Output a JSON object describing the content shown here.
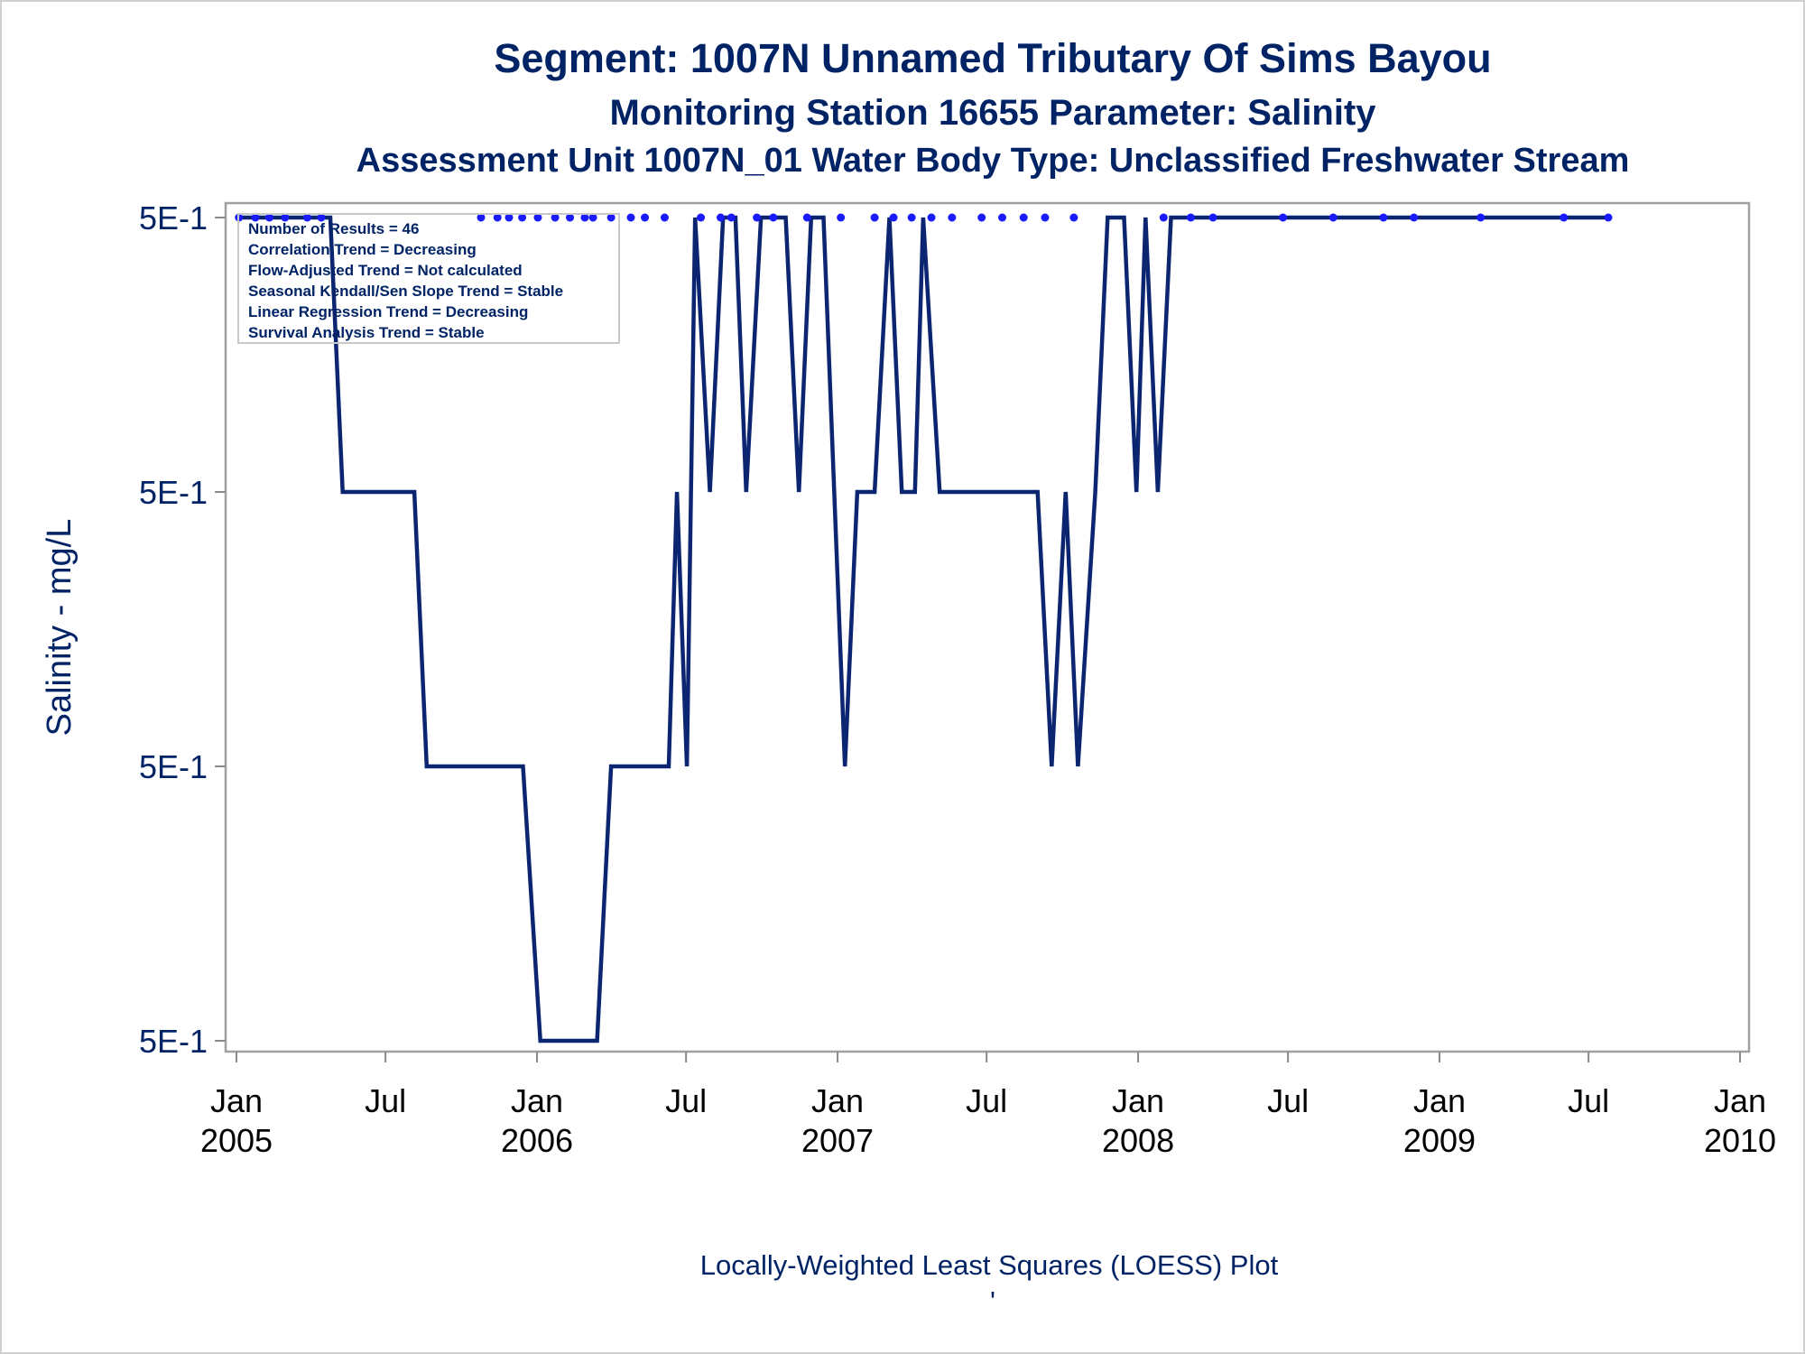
{
  "chart_data": {
    "type": "line",
    "title": "Segment: 1007N  Unnamed Tributary Of Sims Bayou",
    "subtitle": "Monitoring Station 16655 Parameter: Salinity",
    "subtitle2": "Assessment Unit 1007N_01    Water Body Type: Unclassified Freshwater Stream",
    "ylabel": "Salinity - mg/L",
    "footnote": "Locally-Weighted Least Squares (LOESS) Plot",
    "footnote_mark": "'",
    "y_ticks": [
      "5E-1",
      "5E-1",
      "5E-1",
      "5E-1"
    ],
    "y_tick_levels": [
      0,
      1,
      2,
      3
    ],
    "x_ticks": [
      {
        "date": "2005-01-01",
        "line1": "Jan",
        "line2": "2005"
      },
      {
        "date": "2005-07-01",
        "line1": "Jul",
        "line2": ""
      },
      {
        "date": "2006-01-01",
        "line1": "Jan",
        "line2": "2006"
      },
      {
        "date": "2006-07-01",
        "line1": "Jul",
        "line2": ""
      },
      {
        "date": "2007-01-01",
        "line1": "Jan",
        "line2": "2007"
      },
      {
        "date": "2007-07-01",
        "line1": "Jul",
        "line2": ""
      },
      {
        "date": "2008-01-01",
        "line1": "Jan",
        "line2": "2008"
      },
      {
        "date": "2008-07-01",
        "line1": "Jul",
        "line2": ""
      },
      {
        "date": "2009-01-01",
        "line1": "Jan",
        "line2": "2009"
      },
      {
        "date": "2009-07-01",
        "line1": "Jul",
        "line2": ""
      },
      {
        "date": "2010-01-01",
        "line1": "Jan",
        "line2": "2010"
      }
    ],
    "x_range": [
      "2005-01-01",
      "2010-01-01"
    ],
    "y_range": [
      0,
      3
    ],
    "grid": false,
    "legend_position": "top-left",
    "legend_lines": [
      "Number of Results = 46",
      "Correlation Trend = Decreasing",
      "Flow-Adjusted Trend = Not calculated",
      "Seasonal Kendall/Sen Slope Trend = Stable",
      "Linear Regression Trend = Decreasing",
      "Survival Analysis Trend = Stable"
    ],
    "series": [
      {
        "type": "scatter",
        "values": [
          {
            "x": "2005-01-04",
            "y": 3
          },
          {
            "x": "2005-01-24",
            "y": 3
          },
          {
            "x": "2005-02-10",
            "y": 3
          },
          {
            "x": "2005-03-01",
            "y": 3
          },
          {
            "x": "2005-03-28",
            "y": 3
          },
          {
            "x": "2005-04-14",
            "y": 3
          },
          {
            "x": "2005-10-25",
            "y": 3
          },
          {
            "x": "2005-11-14",
            "y": 3
          },
          {
            "x": "2005-11-28",
            "y": 3
          },
          {
            "x": "2005-12-14",
            "y": 3
          },
          {
            "x": "2006-01-02",
            "y": 3
          },
          {
            "x": "2006-01-23",
            "y": 3
          },
          {
            "x": "2006-02-10",
            "y": 3
          },
          {
            "x": "2006-02-28",
            "y": 3
          },
          {
            "x": "2006-03-10",
            "y": 3
          },
          {
            "x": "2006-04-01",
            "y": 3
          },
          {
            "x": "2006-04-25",
            "y": 3
          },
          {
            "x": "2006-05-12",
            "y": 3
          },
          {
            "x": "2006-06-05",
            "y": 3
          },
          {
            "x": "2006-07-19",
            "y": 3
          },
          {
            "x": "2006-08-12",
            "y": 3
          },
          {
            "x": "2006-08-25",
            "y": 3
          },
          {
            "x": "2006-09-25",
            "y": 3
          },
          {
            "x": "2006-10-15",
            "y": 3
          },
          {
            "x": "2006-11-25",
            "y": 3
          },
          {
            "x": "2007-01-05",
            "y": 3
          },
          {
            "x": "2007-02-15",
            "y": 3
          },
          {
            "x": "2007-03-10",
            "y": 3
          },
          {
            "x": "2007-04-01",
            "y": 3
          },
          {
            "x": "2007-04-25",
            "y": 3
          },
          {
            "x": "2007-05-20",
            "y": 3
          },
          {
            "x": "2007-06-25",
            "y": 3
          },
          {
            "x": "2007-07-20",
            "y": 3
          },
          {
            "x": "2007-08-15",
            "y": 3
          },
          {
            "x": "2007-09-10",
            "y": 3
          },
          {
            "x": "2007-10-15",
            "y": 3
          },
          {
            "x": "2008-02-01",
            "y": 3
          },
          {
            "x": "2008-03-05",
            "y": 3
          },
          {
            "x": "2008-04-01",
            "y": 3
          },
          {
            "x": "2008-06-25",
            "y": 3
          },
          {
            "x": "2008-08-25",
            "y": 3
          },
          {
            "x": "2008-10-25",
            "y": 3
          },
          {
            "x": "2008-12-01",
            "y": 3
          },
          {
            "x": "2009-02-20",
            "y": 3
          },
          {
            "x": "2009-06-01",
            "y": 3
          },
          {
            "x": "2009-07-25",
            "y": 3
          }
        ]
      },
      {
        "type": "line",
        "values": [
          {
            "x": "2005-01-04",
            "y": 3
          },
          {
            "x": "2005-04-25",
            "y": 3
          },
          {
            "x": "2005-05-10",
            "y": 2
          },
          {
            "x": "2005-08-05",
            "y": 2
          },
          {
            "x": "2005-08-20",
            "y": 1
          },
          {
            "x": "2005-12-15",
            "y": 1
          },
          {
            "x": "2006-01-05",
            "y": 0
          },
          {
            "x": "2006-03-15",
            "y": 0
          },
          {
            "x": "2006-04-01",
            "y": 1
          },
          {
            "x": "2006-06-10",
            "y": 1
          },
          {
            "x": "2006-06-20",
            "y": 2
          },
          {
            "x": "2006-07-02",
            "y": 1
          },
          {
            "x": "2006-07-12",
            "y": 3
          },
          {
            "x": "2006-07-30",
            "y": 2
          },
          {
            "x": "2006-08-15",
            "y": 3
          },
          {
            "x": "2006-08-30",
            "y": 3
          },
          {
            "x": "2006-09-12",
            "y": 2
          },
          {
            "x": "2006-09-30",
            "y": 3
          },
          {
            "x": "2006-10-30",
            "y": 3
          },
          {
            "x": "2006-11-15",
            "y": 2
          },
          {
            "x": "2006-11-30",
            "y": 3
          },
          {
            "x": "2006-12-15",
            "y": 3
          },
          {
            "x": "2007-01-10",
            "y": 1
          },
          {
            "x": "2007-01-25",
            "y": 2
          },
          {
            "x": "2007-02-15",
            "y": 2
          },
          {
            "x": "2007-03-05",
            "y": 3
          },
          {
            "x": "2007-03-20",
            "y": 2
          },
          {
            "x": "2007-04-05",
            "y": 2
          },
          {
            "x": "2007-04-15",
            "y": 3
          },
          {
            "x": "2007-05-05",
            "y": 2
          },
          {
            "x": "2007-09-01",
            "y": 2
          },
          {
            "x": "2007-09-18",
            "y": 1
          },
          {
            "x": "2007-10-05",
            "y": 2
          },
          {
            "x": "2007-10-20",
            "y": 1
          },
          {
            "x": "2007-11-10",
            "y": 2
          },
          {
            "x": "2007-11-25",
            "y": 3
          },
          {
            "x": "2007-12-15",
            "y": 3
          },
          {
            "x": "2007-12-30",
            "y": 2
          },
          {
            "x": "2008-01-10",
            "y": 3
          },
          {
            "x": "2008-01-25",
            "y": 2
          },
          {
            "x": "2008-02-10",
            "y": 3
          },
          {
            "x": "2009-07-25",
            "y": 3
          }
        ]
      }
    ]
  }
}
